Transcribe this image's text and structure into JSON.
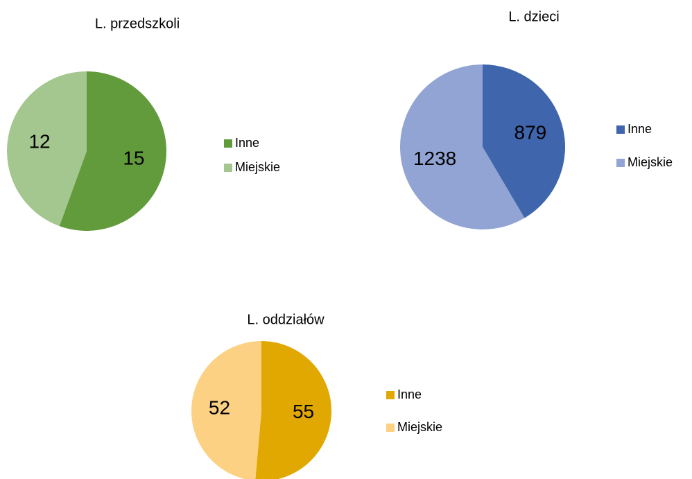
{
  "chart_data": [
    {
      "type": "pie",
      "title": "L. przedszkoli",
      "categories": [
        "Inne",
        "Miejskie"
      ],
      "values": [
        15,
        12
      ],
      "colors": [
        "#629b3c",
        "#a3c78f"
      ]
    },
    {
      "type": "pie",
      "title": "L. dzieci",
      "categories": [
        "Inne",
        "Miejskie"
      ],
      "values": [
        879,
        1238
      ],
      "colors": [
        "#3f65ad",
        "#91a4d4"
      ]
    },
    {
      "type": "pie",
      "title": "L. oddziałów",
      "categories": [
        "Inne",
        "Miejskie"
      ],
      "values": [
        55,
        52
      ],
      "colors": [
        "#e0a800",
        "#fdd184"
      ]
    }
  ]
}
